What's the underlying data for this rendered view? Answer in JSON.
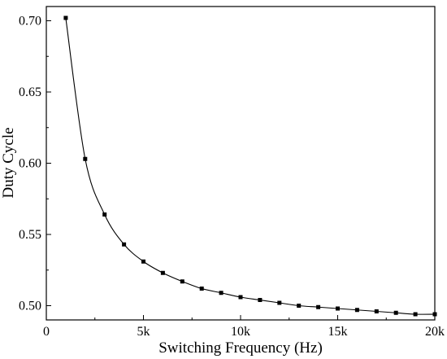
{
  "chart_data": {
    "type": "line",
    "title": "",
    "xlabel": "Switching Frequency (Hz)",
    "ylabel": "Duty Cycle",
    "xlim": [
      0,
      20000
    ],
    "ylim": [
      0.49,
      0.71
    ],
    "x_ticks": [
      0,
      5000,
      10000,
      15000,
      20000
    ],
    "x_tick_labels": [
      "0",
      "5k",
      "10k",
      "15k",
      "20k"
    ],
    "y_ticks": [
      0.5,
      0.55,
      0.6,
      0.65,
      0.7
    ],
    "y_tick_labels": [
      "0.50",
      "0.55",
      "0.60",
      "0.65",
      "0.70"
    ],
    "grid": false,
    "legend": "none",
    "marker": "square",
    "line_color": "#000000",
    "series": [
      {
        "x": [
          1000,
          2000,
          3000,
          4000,
          5000,
          6000,
          7000,
          8000,
          9000,
          10000,
          11000,
          12000,
          13000,
          14000,
          15000,
          16000,
          17000,
          18000,
          19000,
          20000
        ],
        "values": [
          0.702,
          0.603,
          0.564,
          0.543,
          0.531,
          0.523,
          0.517,
          0.512,
          0.509,
          0.506,
          0.504,
          0.502,
          0.5,
          0.499,
          0.498,
          0.497,
          0.496,
          0.495,
          0.494,
          0.494
        ]
      }
    ]
  }
}
